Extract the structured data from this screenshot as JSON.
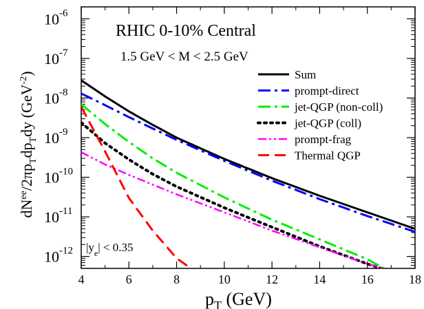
{
  "chart_data": {
    "type": "line",
    "title": "RHIC  0-10% Central",
    "subtitle": "1.5 GeV < M < 2.5 GeV",
    "annotation": "|y_e| < 0.35",
    "xlabel": {
      "main": "p",
      "sub": "T",
      "unit": " (GeV)"
    },
    "ylabel": "dN^ee/2πp_T dp_T dy (GeV^-2)",
    "yscale": "log",
    "xlim": [
      4,
      18
    ],
    "ylim": [
      5e-13,
      2e-06
    ],
    "x_ticks": [
      4,
      6,
      8,
      10,
      12,
      14,
      16,
      18
    ],
    "y_tick_exponents": [
      -12,
      -11,
      -10,
      -9,
      -8,
      -7,
      -6
    ],
    "legend_position": "top-right",
    "series": [
      {
        "name": "Sum",
        "color": "#000000",
        "dash": "solid",
        "x": [
          4,
          5,
          6,
          7,
          8,
          10,
          12,
          14,
          16,
          18
        ],
        "y": [
          2.8e-08,
          1.1e-08,
          4.6e-09,
          2.1e-09,
          1e-09,
          2.9e-10,
          9.5e-11,
          3.4e-11,
          1.3e-11,
          5e-12
        ]
      },
      {
        "name": "prompt-direct",
        "color": "#0000ff",
        "dash": "dash-dot",
        "x": [
          4,
          5,
          6,
          7,
          8,
          10,
          12,
          14,
          16,
          18
        ],
        "y": [
          1.3e-08,
          6.6e-09,
          3.3e-09,
          1.7e-09,
          8.8e-10,
          2.6e-10,
          8.2e-11,
          2.8e-11,
          1.05e-11,
          4.2e-12
        ]
      },
      {
        "name": "jet-QGP (non-coll)",
        "color": "#00ee00",
        "dash": "dash-dot",
        "x": [
          4,
          5,
          6,
          7,
          8,
          10,
          12,
          14,
          16,
          16.7
        ],
        "y": [
          7e-09,
          2.2e-09,
          7.8e-10,
          3e-10,
          1.3e-10,
          3.1e-11,
          8.5e-12,
          2.7e-12,
          8.5e-13,
          5e-13
        ]
      },
      {
        "name": "jet-QGP (coll)",
        "color": "#000000",
        "dash": "dotted",
        "x": [
          4,
          5,
          6,
          7,
          8,
          10,
          12,
          14,
          16,
          16.6
        ],
        "y": [
          2.4e-09,
          7.3e-10,
          2.8e-10,
          1.2e-10,
          5.8e-11,
          1.7e-11,
          5.5e-12,
          1.8e-12,
          6.5e-13,
          5e-13
        ]
      },
      {
        "name": "prompt-frag",
        "color": "#ff00ff",
        "dash": "dash-dot-dot",
        "x": [
          4,
          5,
          6,
          7,
          8,
          10,
          12,
          14,
          16,
          16.7
        ],
        "y": [
          4.3e-10,
          2.1e-10,
          1.15e-10,
          6.5e-11,
          3.7e-11,
          1.3e-11,
          4.5e-12,
          1.7e-12,
          6.5e-13,
          5e-13
        ]
      },
      {
        "name": "Thermal QGP",
        "color": "#ff0000",
        "dash": "dashed",
        "x": [
          4,
          5,
          6,
          7,
          8,
          8.6
        ],
        "y": [
          6e-09,
          4.5e-10,
          3e-11,
          4.5e-12,
          9e-13,
          5e-13
        ]
      }
    ]
  }
}
